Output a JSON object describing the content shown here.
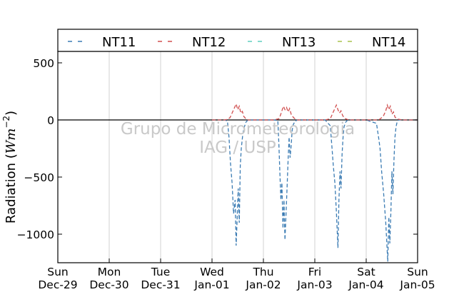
{
  "chart_data": {
    "type": "line",
    "title": "",
    "ylabel_prefix": "Radiation (",
    "ylabel_unit": "Wm",
    "ylabel_exp": "−2",
    "ylabel_suffix": ")",
    "xlabel": "",
    "ylim": [
      -1250,
      600
    ],
    "xlim": [
      0,
      7
    ],
    "grid": "vertical",
    "legend_position": "top",
    "yticks": [
      {
        "value": 500,
        "label": "500"
      },
      {
        "value": 0,
        "label": "0"
      },
      {
        "value": -500,
        "label": "−500"
      },
      {
        "value": -1000,
        "label": "−1000"
      }
    ],
    "xticks": [
      {
        "value": 0,
        "day": "Sun",
        "date": "Dec-29"
      },
      {
        "value": 1,
        "day": "Mon",
        "date": "Dec-30"
      },
      {
        "value": 2,
        "day": "Tue",
        "date": "Dec-31"
      },
      {
        "value": 3,
        "day": "Wed",
        "date": "Jan-01"
      },
      {
        "value": 4,
        "day": "Thu",
        "date": "Jan-02"
      },
      {
        "value": 5,
        "day": "Fri",
        "date": "Jan-03"
      },
      {
        "value": 6,
        "day": "Sat",
        "date": "Jan-04"
      },
      {
        "value": 7,
        "day": "Sun",
        "date": "Jan-05"
      }
    ],
    "watermark": [
      "Grupo de Micrometeorologia",
      "IAG / USP"
    ],
    "series": [
      {
        "name": "NT11",
        "color": "#3a7bb3",
        "x": [
          3.0,
          3.2,
          3.25,
          3.3,
          3.33,
          3.36,
          3.39,
          3.42,
          3.45,
          3.47,
          3.49,
          3.51,
          3.53,
          3.55,
          3.57,
          3.6,
          3.63,
          3.66,
          3.7,
          3.8,
          4.0,
          4.2,
          4.28,
          4.3,
          4.32,
          4.34,
          4.36,
          4.38,
          4.4,
          4.42,
          4.44,
          4.46,
          4.48,
          4.5,
          4.52,
          4.54,
          4.56,
          4.58,
          4.62,
          4.66,
          4.7,
          4.8,
          5.0,
          5.2,
          5.3,
          5.33,
          5.36,
          5.39,
          5.42,
          5.45,
          5.47,
          5.49,
          5.51,
          5.53,
          5.55,
          5.57,
          5.6,
          5.63,
          5.66,
          5.7,
          5.8,
          6.0,
          6.2,
          6.24,
          6.27,
          6.3,
          6.34,
          6.38,
          6.42,
          6.44,
          6.46,
          6.48,
          6.5,
          6.52,
          6.54,
          6.56,
          6.58,
          6.6,
          6.63,
          6.66,
          6.7,
          6.8,
          7.0
        ],
        "values": [
          0,
          0,
          0,
          -10,
          -150,
          -380,
          -550,
          -820,
          -700,
          -1100,
          -850,
          -600,
          -900,
          -400,
          -250,
          -120,
          -60,
          -20,
          0,
          0,
          0,
          0,
          -5,
          -200,
          -450,
          -700,
          -550,
          -950,
          -700,
          -1050,
          -820,
          -600,
          -350,
          -150,
          -330,
          -220,
          -90,
          -40,
          -10,
          0,
          0,
          0,
          0,
          0,
          -50,
          -220,
          -400,
          -550,
          -800,
          -1120,
          -700,
          -450,
          -600,
          -300,
          -150,
          -60,
          -20,
          -5,
          0,
          0,
          0,
          0,
          -30,
          -150,
          -250,
          -450,
          -650,
          -900,
          -1240,
          -850,
          -1080,
          -800,
          -450,
          -650,
          -350,
          -150,
          -60,
          -20,
          0,
          0,
          0,
          0,
          0
        ]
      },
      {
        "name": "NT12",
        "color": "#d04e4e",
        "x": [
          3.0,
          3.1,
          3.15,
          3.2,
          3.25,
          3.3,
          3.35,
          3.38,
          3.41,
          3.44,
          3.47,
          3.5,
          3.53,
          3.56,
          3.59,
          3.62,
          3.66,
          3.7,
          3.8,
          4.0,
          4.2,
          4.3,
          4.33,
          4.36,
          4.39,
          4.42,
          4.45,
          4.48,
          4.51,
          4.54,
          4.57,
          4.6,
          4.63,
          4.66,
          4.7,
          4.8,
          5.0,
          5.2,
          5.3,
          5.33,
          5.36,
          5.39,
          5.42,
          5.45,
          5.48,
          5.51,
          5.54,
          5.57,
          5.6,
          5.63,
          5.66,
          5.7,
          5.8,
          6.0,
          6.2,
          6.26,
          6.3,
          6.34,
          6.38,
          6.41,
          6.44,
          6.47,
          6.5,
          6.53,
          6.56,
          6.6,
          6.64,
          6.7,
          6.8,
          7.0
        ],
        "values": [
          0,
          0,
          0,
          0,
          0,
          5,
          20,
          50,
          80,
          110,
          140,
          90,
          120,
          60,
          75,
          30,
          10,
          0,
          0,
          0,
          0,
          10,
          40,
          80,
          120,
          90,
          110,
          70,
          100,
          50,
          30,
          15,
          5,
          0,
          0,
          0,
          0,
          0,
          10,
          40,
          70,
          100,
          130,
          90,
          60,
          80,
          40,
          20,
          10,
          5,
          0,
          0,
          0,
          0,
          0,
          5,
          20,
          40,
          80,
          130,
          90,
          120,
          50,
          70,
          25,
          10,
          5,
          0,
          0,
          0
        ]
      },
      {
        "name": "NT13",
        "color": "#5fcfbf",
        "x": [],
        "values": []
      },
      {
        "name": "NT14",
        "color": "#a9c44f",
        "x": [],
        "values": []
      }
    ]
  }
}
